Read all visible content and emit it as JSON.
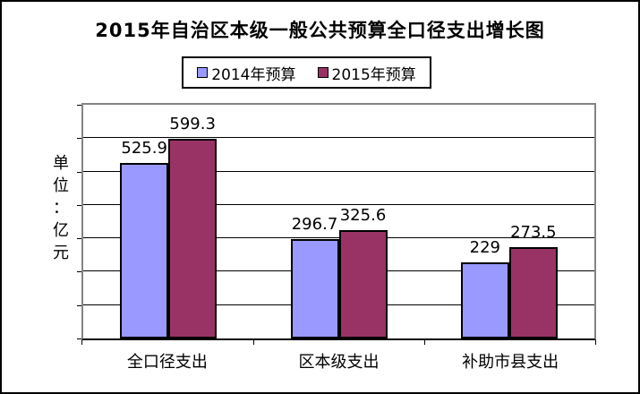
{
  "page": {
    "background": "#FFFFFF",
    "frame_border_color": "#000000"
  },
  "title": {
    "text": "2015年自治区本级一般公共预算全口径支出增长图"
  },
  "legend": {
    "items": [
      {
        "label": "2014年预算",
        "color": "#9999FF"
      },
      {
        "label": "2015年预算",
        "color": "#993366"
      }
    ]
  },
  "y_axis": {
    "unit_label": "单位：亿元"
  },
  "chart_data": {
    "type": "bar",
    "title": "2015年自治区本级一般公共预算全口径支出增长图",
    "categories": [
      "全口径支出",
      "区本级支出",
      "补助市县支出"
    ],
    "series": [
      {
        "name": "2014年预算",
        "color": "#9999FF",
        "values": [
          525.9,
          296.7,
          229
        ],
        "data_labels": [
          "525.9",
          "296.7",
          "229"
        ]
      },
      {
        "name": "2015年预算",
        "color": "#993366",
        "values": [
          599.3,
          325.6,
          273.5
        ],
        "data_labels": [
          "599.3",
          "325.6",
          "273.5"
        ]
      }
    ],
    "xlabel": "",
    "ylabel": "单位：亿元",
    "ylim": [
      0,
      700
    ],
    "gridline_step": 100,
    "grid": true,
    "legend_position": "top-center",
    "plot_border_color": "#848484",
    "axis_color": "#000000",
    "gridline_color": "#000000",
    "bar_border_color": "#000000"
  }
}
